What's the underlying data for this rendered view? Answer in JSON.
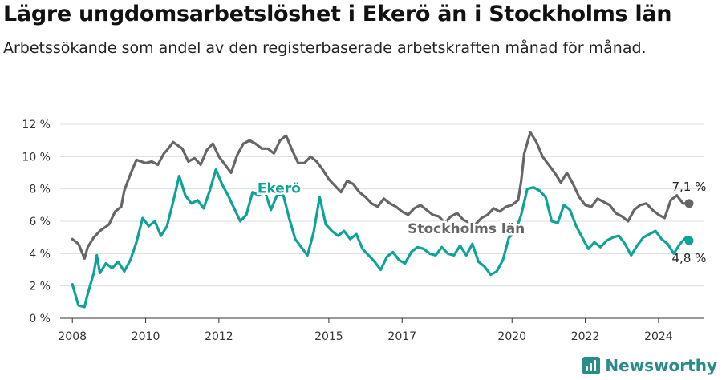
{
  "title": "Lägre ungdomsarbetslöshet i Ekerö än i Stockholms län",
  "subtitle": "Arbetssökande som andel av den registerbaserade arbetskraften månad för månad.",
  "brand": "Newsworthy",
  "colors": {
    "stockholm": "#666666",
    "ekero": "#0fa397",
    "grid": "#dddddd",
    "axis": "#333333"
  },
  "chart_data": {
    "type": "line",
    "x_ticks": [
      "2008",
      "2010",
      "2012",
      "2015",
      "2017",
      "2020",
      "2022",
      "2024"
    ],
    "y_ticks": [
      "0 %",
      "2 %",
      "4 %",
      "6 %",
      "8 %",
      "10 %",
      "12 %"
    ],
    "ylim": [
      0,
      12
    ],
    "xlim": [
      "2007-09",
      "2025-04"
    ],
    "grid": true,
    "series": [
      {
        "name": "Stockholms län",
        "end_label": "7,1 %",
        "points": [
          [
            "2008-01",
            4.9
          ],
          [
            "2008-03",
            4.6
          ],
          [
            "2008-05",
            3.7
          ],
          [
            "2008-06",
            4.4
          ],
          [
            "2008-08",
            5.0
          ],
          [
            "2008-10",
            5.4
          ],
          [
            "2009-01",
            5.8
          ],
          [
            "2009-03",
            6.6
          ],
          [
            "2009-05",
            6.9
          ],
          [
            "2009-06",
            7.9
          ],
          [
            "2009-08",
            8.9
          ],
          [
            "2009-10",
            9.8
          ],
          [
            "2010-01",
            9.6
          ],
          [
            "2010-03",
            9.7
          ],
          [
            "2010-05",
            9.5
          ],
          [
            "2010-07",
            10.2
          ],
          [
            "2010-08",
            10.4
          ],
          [
            "2010-10",
            10.9
          ],
          [
            "2011-01",
            10.5
          ],
          [
            "2011-03",
            9.7
          ],
          [
            "2011-05",
            9.9
          ],
          [
            "2011-07",
            9.5
          ],
          [
            "2011-09",
            10.4
          ],
          [
            "2011-11",
            10.8
          ],
          [
            "2012-01",
            10.0
          ],
          [
            "2012-03",
            9.5
          ],
          [
            "2012-05",
            9.0
          ],
          [
            "2012-07",
            10.1
          ],
          [
            "2012-09",
            10.8
          ],
          [
            "2012-11",
            11.0
          ],
          [
            "2013-01",
            10.8
          ],
          [
            "2013-03",
            10.5
          ],
          [
            "2013-05",
            10.5
          ],
          [
            "2013-07",
            10.2
          ],
          [
            "2013-09",
            11.0
          ],
          [
            "2013-11",
            11.3
          ],
          [
            "2014-01",
            10.4
          ],
          [
            "2014-03",
            9.6
          ],
          [
            "2014-05",
            9.6
          ],
          [
            "2014-07",
            10.0
          ],
          [
            "2014-09",
            9.7
          ],
          [
            "2014-11",
            9.2
          ],
          [
            "2015-01",
            8.6
          ],
          [
            "2015-03",
            8.2
          ],
          [
            "2015-05",
            7.8
          ],
          [
            "2015-07",
            8.5
          ],
          [
            "2015-09",
            8.3
          ],
          [
            "2015-11",
            7.8
          ],
          [
            "2016-01",
            7.5
          ],
          [
            "2016-03",
            7.1
          ],
          [
            "2016-05",
            6.9
          ],
          [
            "2016-07",
            7.4
          ],
          [
            "2016-09",
            7.1
          ],
          [
            "2016-11",
            6.9
          ],
          [
            "2017-01",
            6.6
          ],
          [
            "2017-03",
            6.4
          ],
          [
            "2017-05",
            6.8
          ],
          [
            "2017-07",
            7.0
          ],
          [
            "2017-09",
            6.7
          ],
          [
            "2017-11",
            6.4
          ],
          [
            "2018-01",
            6.3
          ],
          [
            "2018-03",
            5.9
          ],
          [
            "2018-05",
            6.3
          ],
          [
            "2018-07",
            6.5
          ],
          [
            "2018-09",
            6.1
          ],
          [
            "2018-11",
            5.9
          ],
          [
            "2019-01",
            5.8
          ],
          [
            "2019-03",
            6.2
          ],
          [
            "2019-05",
            6.4
          ],
          [
            "2019-07",
            6.8
          ],
          [
            "2019-09",
            6.6
          ],
          [
            "2019-11",
            6.9
          ],
          [
            "2020-01",
            7.0
          ],
          [
            "2020-03",
            7.3
          ],
          [
            "2020-04",
            8.5
          ],
          [
            "2020-05",
            10.2
          ],
          [
            "2020-07",
            11.5
          ],
          [
            "2020-09",
            10.9
          ],
          [
            "2020-11",
            10.0
          ],
          [
            "2021-01",
            9.5
          ],
          [
            "2021-03",
            9.0
          ],
          [
            "2021-05",
            8.4
          ],
          [
            "2021-07",
            9.0
          ],
          [
            "2021-09",
            8.3
          ],
          [
            "2021-11",
            7.5
          ],
          [
            "2022-01",
            7.0
          ],
          [
            "2022-03",
            6.9
          ],
          [
            "2022-05",
            7.4
          ],
          [
            "2022-07",
            7.2
          ],
          [
            "2022-09",
            7.0
          ],
          [
            "2022-11",
            6.5
          ],
          [
            "2023-01",
            6.3
          ],
          [
            "2023-03",
            6.0
          ],
          [
            "2023-05",
            6.7
          ],
          [
            "2023-07",
            7.0
          ],
          [
            "2023-09",
            7.1
          ],
          [
            "2023-11",
            6.7
          ],
          [
            "2024-01",
            6.4
          ],
          [
            "2024-03",
            6.2
          ],
          [
            "2024-05",
            7.3
          ],
          [
            "2024-07",
            7.6
          ],
          [
            "2024-09",
            7.1
          ],
          [
            "2024-11",
            7.1
          ]
        ]
      },
      {
        "name": "Ekerö",
        "end_label": "4,8 %",
        "points": [
          [
            "2008-01",
            2.1
          ],
          [
            "2008-03",
            0.8
          ],
          [
            "2008-05",
            0.7
          ],
          [
            "2008-06",
            1.5
          ],
          [
            "2008-08",
            2.8
          ],
          [
            "2008-09",
            3.9
          ],
          [
            "2008-10",
            2.8
          ],
          [
            "2008-12",
            3.4
          ],
          [
            "2009-02",
            3.1
          ],
          [
            "2009-04",
            3.5
          ],
          [
            "2009-06",
            2.9
          ],
          [
            "2009-08",
            3.6
          ],
          [
            "2009-10",
            4.7
          ],
          [
            "2009-12",
            6.2
          ],
          [
            "2010-02",
            5.7
          ],
          [
            "2010-04",
            6.0
          ],
          [
            "2010-06",
            5.1
          ],
          [
            "2010-08",
            5.7
          ],
          [
            "2010-10",
            7.2
          ],
          [
            "2010-12",
            8.8
          ],
          [
            "2011-02",
            7.6
          ],
          [
            "2011-04",
            7.1
          ],
          [
            "2011-06",
            7.3
          ],
          [
            "2011-08",
            6.8
          ],
          [
            "2011-10",
            7.9
          ],
          [
            "2011-12",
            9.2
          ],
          [
            "2012-02",
            8.3
          ],
          [
            "2012-04",
            7.6
          ],
          [
            "2012-06",
            6.8
          ],
          [
            "2012-08",
            6.0
          ],
          [
            "2012-10",
            6.4
          ],
          [
            "2012-12",
            7.8
          ],
          [
            "2013-02",
            7.6
          ],
          [
            "2013-04",
            7.9
          ],
          [
            "2013-06",
            6.7
          ],
          [
            "2013-08",
            7.6
          ],
          [
            "2013-10",
            7.7
          ],
          [
            "2013-12",
            6.2
          ],
          [
            "2014-02",
            4.9
          ],
          [
            "2014-04",
            4.4
          ],
          [
            "2014-06",
            3.9
          ],
          [
            "2014-08",
            5.3
          ],
          [
            "2014-10",
            7.5
          ],
          [
            "2014-12",
            5.8
          ],
          [
            "2015-02",
            5.4
          ],
          [
            "2015-04",
            5.1
          ],
          [
            "2015-06",
            5.4
          ],
          [
            "2015-08",
            4.9
          ],
          [
            "2015-10",
            5.2
          ],
          [
            "2015-12",
            4.3
          ],
          [
            "2016-02",
            3.9
          ],
          [
            "2016-04",
            3.5
          ],
          [
            "2016-06",
            3.0
          ],
          [
            "2016-08",
            3.8
          ],
          [
            "2016-10",
            4.1
          ],
          [
            "2016-12",
            3.6
          ],
          [
            "2017-02",
            3.4
          ],
          [
            "2017-04",
            4.1
          ],
          [
            "2017-06",
            4.4
          ],
          [
            "2017-08",
            4.3
          ],
          [
            "2017-10",
            4.0
          ],
          [
            "2017-12",
            3.9
          ],
          [
            "2018-02",
            4.4
          ],
          [
            "2018-04",
            4.0
          ],
          [
            "2018-06",
            3.9
          ],
          [
            "2018-08",
            4.5
          ],
          [
            "2018-10",
            3.9
          ],
          [
            "2018-12",
            4.6
          ],
          [
            "2019-02",
            3.5
          ],
          [
            "2019-04",
            3.2
          ],
          [
            "2019-06",
            2.7
          ],
          [
            "2019-08",
            2.9
          ],
          [
            "2019-10",
            3.6
          ],
          [
            "2019-12",
            5.0
          ],
          [
            "2020-02",
            5.3
          ],
          [
            "2020-04",
            6.4
          ],
          [
            "2020-06",
            8.0
          ],
          [
            "2020-08",
            8.1
          ],
          [
            "2020-10",
            7.9
          ],
          [
            "2020-12",
            7.5
          ],
          [
            "2021-02",
            6.0
          ],
          [
            "2021-04",
            5.9
          ],
          [
            "2021-06",
            7.0
          ],
          [
            "2021-08",
            6.7
          ],
          [
            "2021-10",
            5.7
          ],
          [
            "2021-12",
            5.0
          ],
          [
            "2022-02",
            4.3
          ],
          [
            "2022-04",
            4.7
          ],
          [
            "2022-06",
            4.4
          ],
          [
            "2022-08",
            4.8
          ],
          [
            "2022-10",
            5.0
          ],
          [
            "2022-12",
            5.1
          ],
          [
            "2023-02",
            4.6
          ],
          [
            "2023-04",
            3.9
          ],
          [
            "2023-06",
            4.5
          ],
          [
            "2023-08",
            5.0
          ],
          [
            "2023-10",
            5.2
          ],
          [
            "2023-12",
            5.4
          ],
          [
            "2024-02",
            4.9
          ],
          [
            "2024-04",
            4.6
          ],
          [
            "2024-06",
            4.0
          ],
          [
            "2024-08",
            4.6
          ],
          [
            "2024-10",
            5.0
          ],
          [
            "2024-11",
            4.8
          ]
        ]
      }
    ]
  }
}
